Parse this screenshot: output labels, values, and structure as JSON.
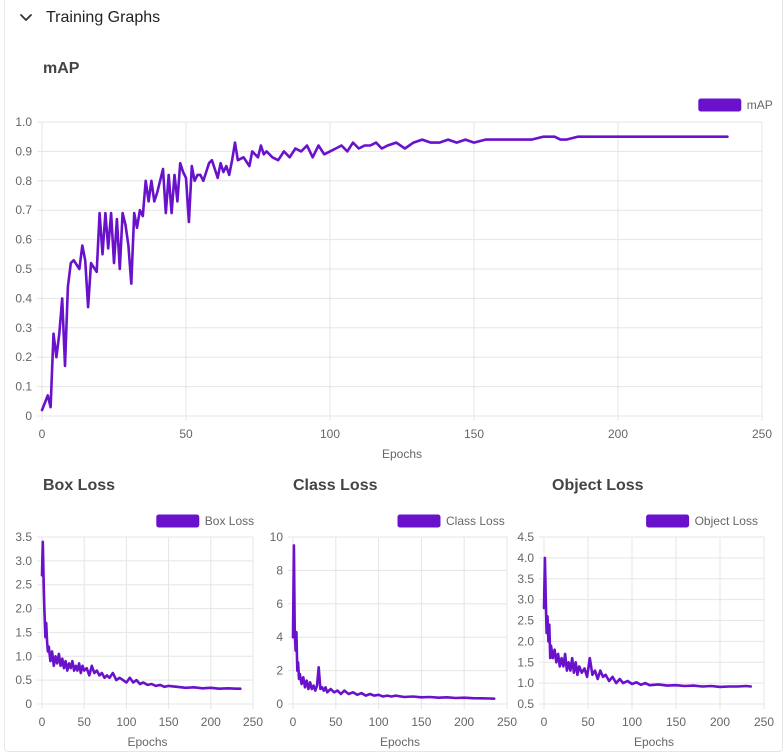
{
  "section": {
    "title": "Training Graphs",
    "chevron_icon": "chevron-down-icon"
  },
  "colors": {
    "series": "#6a11cb",
    "grid": "#e5e5e5",
    "text": "#666666"
  },
  "chart_data": [
    {
      "id": "map",
      "type": "line",
      "title": "mAP",
      "xlabel": "Epochs",
      "ylabel": "",
      "legend": "mAP",
      "legend_position": "top-right",
      "xlim": [
        0,
        250
      ],
      "ylim": [
        0,
        1.0
      ],
      "xticks": [
        0,
        50,
        100,
        150,
        200,
        250
      ],
      "yticks": [
        0,
        0.1,
        0.2,
        0.3,
        0.4,
        0.5,
        0.6,
        0.7,
        0.8,
        0.9,
        1.0
      ],
      "ytick_labels": [
        "0",
        "0.1",
        "0.2",
        "0.3",
        "0.4",
        "0.5",
        "0.6",
        "0.7",
        "0.8",
        "0.9",
        "1.0"
      ],
      "grid": true,
      "series": [
        {
          "name": "mAP",
          "x": [
            0,
            2,
            3,
            4,
            5,
            6,
            7,
            8,
            9,
            10,
            11,
            13,
            14,
            15,
            16,
            17,
            19,
            20,
            21,
            22,
            23,
            24,
            25,
            26,
            27,
            28,
            29,
            30,
            31,
            32,
            33,
            34,
            35,
            36,
            37,
            38,
            39,
            40,
            41,
            42,
            43,
            44,
            45,
            46,
            47,
            48,
            49,
            50,
            51,
            52,
            53,
            54,
            55,
            56,
            57,
            58,
            59,
            60,
            61,
            62,
            63,
            64,
            65,
            66,
            67,
            68,
            70,
            72,
            73,
            75,
            76,
            77,
            78,
            80,
            82,
            84,
            86,
            88,
            90,
            92,
            94,
            96,
            98,
            100,
            102,
            104,
            106,
            108,
            110,
            112,
            114,
            116,
            118,
            120,
            123,
            126,
            129,
            132,
            135,
            138,
            141,
            144,
            147,
            150,
            154,
            158,
            162,
            166,
            170,
            174,
            178,
            180,
            182,
            186,
            190,
            195,
            200,
            205,
            210,
            215,
            220,
            225,
            230,
            235,
            238
          ],
          "values": [
            0.02,
            0.07,
            0.03,
            0.28,
            0.2,
            0.28,
            0.4,
            0.17,
            0.44,
            0.52,
            0.53,
            0.5,
            0.58,
            0.53,
            0.37,
            0.52,
            0.49,
            0.69,
            0.55,
            0.69,
            0.57,
            0.69,
            0.52,
            0.67,
            0.5,
            0.69,
            0.65,
            0.58,
            0.45,
            0.69,
            0.64,
            0.7,
            0.68,
            0.8,
            0.73,
            0.8,
            0.73,
            0.76,
            0.8,
            0.84,
            0.69,
            0.82,
            0.69,
            0.82,
            0.73,
            0.86,
            0.83,
            0.81,
            0.66,
            0.85,
            0.8,
            0.82,
            0.82,
            0.8,
            0.83,
            0.86,
            0.87,
            0.84,
            0.81,
            0.86,
            0.83,
            0.85,
            0.82,
            0.87,
            0.93,
            0.87,
            0.88,
            0.85,
            0.9,
            0.88,
            0.92,
            0.89,
            0.9,
            0.88,
            0.87,
            0.9,
            0.88,
            0.91,
            0.9,
            0.92,
            0.88,
            0.92,
            0.89,
            0.9,
            0.91,
            0.92,
            0.9,
            0.93,
            0.91,
            0.92,
            0.92,
            0.93,
            0.91,
            0.92,
            0.93,
            0.91,
            0.93,
            0.94,
            0.93,
            0.93,
            0.94,
            0.93,
            0.94,
            0.93,
            0.94,
            0.94,
            0.94,
            0.94,
            0.94,
            0.95,
            0.95,
            0.94,
            0.94,
            0.95,
            0.95,
            0.95,
            0.95,
            0.95,
            0.95,
            0.95,
            0.95,
            0.95,
            0.95,
            0.95,
            0.95
          ]
        }
      ]
    },
    {
      "id": "box",
      "type": "line",
      "title": "Box Loss",
      "xlabel": "Epochs",
      "ylabel": "",
      "legend": "Box Loss",
      "legend_position": "top-right",
      "xlim": [
        0,
        250
      ],
      "ylim": [
        0,
        3.5
      ],
      "xticks": [
        0,
        50,
        100,
        150,
        200,
        250
      ],
      "yticks": [
        0,
        0.5,
        1.0,
        1.5,
        2.0,
        2.5,
        3.0,
        3.5
      ],
      "ytick_labels": [
        "0",
        "0.5",
        "1.0",
        "1.5",
        "2.0",
        "2.5",
        "3.0",
        "3.5"
      ],
      "grid": true,
      "series": [
        {
          "name": "Box Loss",
          "x": [
            0,
            1,
            2,
            3,
            4,
            5,
            6,
            7,
            8,
            10,
            12,
            14,
            16,
            18,
            20,
            22,
            24,
            26,
            28,
            30,
            32,
            34,
            36,
            38,
            40,
            42,
            44,
            46,
            48,
            50,
            53,
            56,
            59,
            62,
            65,
            68,
            71,
            74,
            77,
            80,
            84,
            88,
            92,
            96,
            100,
            104,
            108,
            112,
            116,
            120,
            125,
            130,
            135,
            140,
            145,
            150,
            160,
            170,
            180,
            190,
            200,
            210,
            220,
            230,
            235
          ],
          "values": [
            2.7,
            3.4,
            2.5,
            1.9,
            1.4,
            1.7,
            1.3,
            1.1,
            1.2,
            0.9,
            1.1,
            0.8,
            1.0,
            0.85,
            1.05,
            0.8,
            0.95,
            0.75,
            0.9,
            0.7,
            0.85,
            0.75,
            0.9,
            0.7,
            0.8,
            0.7,
            0.85,
            0.65,
            0.8,
            0.7,
            0.75,
            0.6,
            0.8,
            0.65,
            0.7,
            0.6,
            0.65,
            0.55,
            0.6,
            0.55,
            0.65,
            0.5,
            0.55,
            0.5,
            0.45,
            0.55,
            0.45,
            0.5,
            0.42,
            0.45,
            0.4,
            0.42,
            0.38,
            0.4,
            0.36,
            0.38,
            0.36,
            0.34,
            0.35,
            0.33,
            0.34,
            0.32,
            0.33,
            0.32,
            0.32
          ]
        }
      ]
    },
    {
      "id": "class",
      "type": "line",
      "title": "Class Loss",
      "xlabel": "Epochs",
      "ylabel": "",
      "legend": "Class Loss",
      "legend_position": "top-right",
      "xlim": [
        0,
        250
      ],
      "ylim": [
        0,
        10
      ],
      "xticks": [
        0,
        50,
        100,
        150,
        200,
        250
      ],
      "yticks": [
        0,
        2,
        4,
        6,
        8,
        10
      ],
      "ytick_labels": [
        "0",
        "2",
        "4",
        "6",
        "8",
        "10"
      ],
      "grid": true,
      "series": [
        {
          "name": "Class Loss",
          "x": [
            0,
            1,
            2,
            3,
            4,
            5,
            6,
            7,
            8,
            10,
            12,
            14,
            16,
            18,
            20,
            22,
            24,
            26,
            28,
            30,
            32,
            34,
            36,
            38,
            40,
            44,
            48,
            52,
            56,
            60,
            65,
            70,
            75,
            80,
            85,
            90,
            95,
            100,
            105,
            110,
            115,
            120,
            130,
            140,
            150,
            160,
            170,
            180,
            190,
            200,
            210,
            220,
            230,
            235
          ],
          "values": [
            4.0,
            9.5,
            4.5,
            3.2,
            4.3,
            2.0,
            2.5,
            1.5,
            1.8,
            1.2,
            1.6,
            1.0,
            1.4,
            0.9,
            1.3,
            0.9,
            1.1,
            0.8,
            1.1,
            2.2,
            0.9,
            1.0,
            0.8,
            1.0,
            0.7,
            0.9,
            0.7,
            0.8,
            0.6,
            0.8,
            0.6,
            0.7,
            0.55,
            0.65,
            0.5,
            0.6,
            0.5,
            0.55,
            0.45,
            0.5,
            0.45,
            0.5,
            0.42,
            0.45,
            0.4,
            0.42,
            0.38,
            0.4,
            0.36,
            0.38,
            0.35,
            0.34,
            0.33,
            0.32
          ]
        }
      ]
    },
    {
      "id": "object",
      "type": "line",
      "title": "Object Loss",
      "xlabel": "Epochs",
      "ylabel": "",
      "legend": "Object Loss",
      "legend_position": "top-right",
      "xlim": [
        0,
        250
      ],
      "ylim": [
        0.5,
        4.5
      ],
      "xticks": [
        0,
        50,
        100,
        150,
        200,
        250
      ],
      "yticks": [
        0.5,
        1.0,
        1.5,
        2.0,
        2.5,
        3.0,
        3.5,
        4.0,
        4.5
      ],
      "ytick_labels": [
        "0.5",
        "1.0",
        "1.5",
        "2.0",
        "2.5",
        "3.0",
        "3.5",
        "4.0",
        "4.5"
      ],
      "grid": true,
      "series": [
        {
          "name": "Object Loss",
          "x": [
            0,
            1,
            2,
            3,
            4,
            5,
            6,
            7,
            8,
            10,
            12,
            14,
            16,
            18,
            20,
            22,
            24,
            26,
            28,
            30,
            32,
            34,
            36,
            38,
            40,
            43,
            46,
            49,
            52,
            55,
            58,
            61,
            64,
            67,
            70,
            74,
            78,
            82,
            86,
            90,
            95,
            100,
            105,
            110,
            115,
            120,
            130,
            140,
            150,
            160,
            170,
            180,
            190,
            200,
            210,
            220,
            230,
            235
          ],
          "values": [
            2.8,
            4.0,
            3.0,
            2.2,
            2.6,
            2.0,
            2.4,
            1.6,
            1.9,
            1.6,
            1.8,
            1.5,
            1.7,
            1.4,
            1.6,
            1.4,
            1.7,
            1.3,
            1.5,
            1.3,
            1.6,
            1.25,
            1.5,
            1.2,
            1.4,
            1.25,
            1.35,
            1.15,
            1.6,
            1.2,
            1.3,
            1.1,
            1.3,
            1.15,
            1.2,
            1.05,
            1.15,
            1.0,
            1.1,
            1.0,
            1.05,
            0.98,
            1.02,
            0.96,
            1.0,
            0.95,
            0.97,
            0.94,
            0.95,
            0.93,
            0.94,
            0.92,
            0.93,
            0.91,
            0.92,
            0.92,
            0.93,
            0.92
          ]
        }
      ]
    }
  ]
}
